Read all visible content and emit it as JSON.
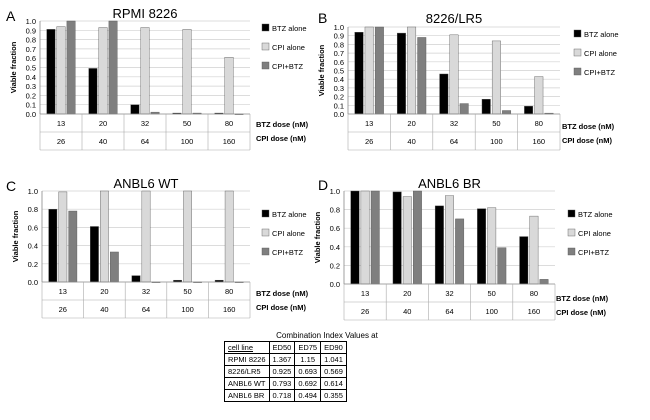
{
  "chart_data": [
    {
      "type": "bar",
      "panel_letter": "A",
      "title": "RPMI 8226",
      "ylabel": "Viable fraction",
      "ylim": [
        0,
        1.0
      ],
      "yticks": [
        "0.0",
        "0.1",
        "0.2",
        "0.3",
        "0.4",
        "0.5",
        "0.6",
        "0.7",
        "0.8",
        "0.9",
        "1.0"
      ],
      "categories": [
        "13",
        "20",
        "32",
        "50",
        "80"
      ],
      "categories2": [
        "26",
        "40",
        "64",
        "100",
        "160"
      ],
      "row_label_1": "BTZ dose (nM)",
      "row_label_2": "CPI dose (nM)",
      "series": [
        {
          "name": "BTZ alone",
          "color": "#000000",
          "values": [
            0.91,
            0.49,
            0.1,
            0.01,
            0.01
          ]
        },
        {
          "name": "CPI alone",
          "color": "#d9d9d9",
          "values": [
            0.94,
            0.93,
            0.93,
            0.91,
            0.61
          ]
        },
        {
          "name": "CPI+BTZ",
          "color": "#7f7f7f",
          "values": [
            1.0,
            1.0,
            0.02,
            0.01,
            0.0
          ]
        }
      ]
    },
    {
      "type": "bar",
      "panel_letter": "B",
      "title": "8226/LR5",
      "ylabel": "Viable fraction",
      "ylim": [
        0,
        1.0
      ],
      "yticks": [
        "0.0",
        "0.1",
        "0.2",
        "0.3",
        "0.4",
        "0.5",
        "0.6",
        "0.7",
        "0.8",
        "0.9",
        "1.0"
      ],
      "categories": [
        "13",
        "20",
        "32",
        "50",
        "80"
      ],
      "categories2": [
        "26",
        "40",
        "64",
        "100",
        "160"
      ],
      "row_label_1": "BTZ dose (nM)",
      "row_label_2": "CPI dose (nM)",
      "series": [
        {
          "name": "BTZ alone",
          "color": "#000000",
          "values": [
            0.94,
            0.93,
            0.46,
            0.17,
            0.09
          ]
        },
        {
          "name": "CPI alone",
          "color": "#d9d9d9",
          "values": [
            1.0,
            1.0,
            0.91,
            0.84,
            0.43
          ]
        },
        {
          "name": "CPI+BTZ",
          "color": "#7f7f7f",
          "values": [
            1.0,
            0.88,
            0.12,
            0.04,
            0.01
          ]
        }
      ]
    },
    {
      "type": "bar",
      "panel_letter": "C",
      "title": "ANBL6 WT",
      "ylabel": "Viable fraction",
      "ylim": [
        0,
        1.0
      ],
      "yticks": [
        "0.0",
        "0.2",
        "0.4",
        "0.6",
        "0.8",
        "1.0"
      ],
      "categories": [
        "13",
        "20",
        "32",
        "50",
        "80"
      ],
      "categories2": [
        "26",
        "40",
        "64",
        "100",
        "160"
      ],
      "row_label_1": "BTZ dose (nM)",
      "row_label_2": "CPI dose (nM)",
      "series": [
        {
          "name": "BTZ alone",
          "color": "#000000",
          "values": [
            0.8,
            0.61,
            0.07,
            0.02,
            0.02
          ]
        },
        {
          "name": "CPI alone",
          "color": "#d9d9d9",
          "values": [
            0.99,
            1.0,
            1.0,
            1.0,
            1.0
          ]
        },
        {
          "name": "CPI+BTZ",
          "color": "#7f7f7f",
          "values": [
            0.78,
            0.33,
            0.0,
            0.0,
            0.0
          ]
        }
      ]
    },
    {
      "type": "bar",
      "panel_letter": "D",
      "title": "ANBL6 BR",
      "ylabel": "Viable fraction",
      "ylim": [
        0,
        1.0
      ],
      "yticks": [
        "0.0",
        "0.2",
        "0.4",
        "0.6",
        "0.8",
        "1.0"
      ],
      "categories": [
        "13",
        "20",
        "32",
        "50",
        "80"
      ],
      "categories2": [
        "26",
        "40",
        "64",
        "100",
        "160"
      ],
      "row_label_1": "BTZ dose (nM)",
      "row_label_2": "CPI dose (nM)",
      "series": [
        {
          "name": "BTZ alone",
          "color": "#000000",
          "values": [
            1.0,
            0.99,
            0.84,
            0.81,
            0.51
          ]
        },
        {
          "name": "CPI alone",
          "color": "#d9d9d9",
          "values": [
            1.0,
            0.94,
            0.95,
            0.82,
            0.73
          ]
        },
        {
          "name": "CPI+BTZ",
          "color": "#7f7f7f",
          "values": [
            1.0,
            1.0,
            0.7,
            0.39,
            0.05
          ]
        }
      ]
    }
  ],
  "ci_table": {
    "caption": "Combination Index Values at",
    "headers": [
      "cell line",
      "ED50",
      "ED75",
      "ED90"
    ],
    "rows": [
      [
        "RPMI 8226",
        "1.367",
        "1.15",
        "1.041"
      ],
      [
        "8226/LR5",
        "0.925",
        "0.693",
        "0.569"
      ],
      [
        "ANBL6 WT",
        "0.793",
        "0.692",
        "0.614"
      ],
      [
        "ANBL6 BR",
        "0.718",
        "0.494",
        "0.355"
      ]
    ]
  }
}
